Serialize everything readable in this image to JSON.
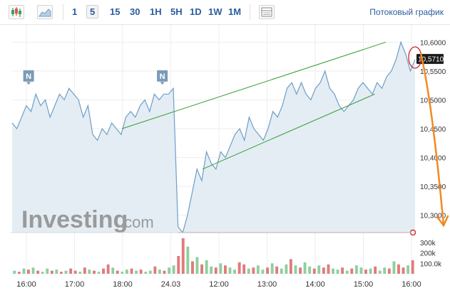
{
  "toolbar": {
    "chart_type_candles_icon": "candlestick-icon",
    "chart_type_area_icon": "area-chart-icon",
    "intervals": [
      "1",
      "5",
      "15",
      "30",
      "1H",
      "5H",
      "1D",
      "1W",
      "1M"
    ],
    "active_interval": "5",
    "table_icon": "table-icon",
    "stream_label": "Потоковый график"
  },
  "watermark": {
    "brand": "Investing",
    "suffix": ".com"
  },
  "colors": {
    "line": "#6d9ec8",
    "area": "#e4edf4",
    "channel": "#2f9e2f",
    "support": "#cc3333",
    "arrow": "#f08a24",
    "vol_up": "#8fcf9f",
    "vol_down": "#e07b7b",
    "news_badge": "#7b9ab7"
  },
  "news_badges": [
    {
      "label": "N",
      "x_hour": 15.95
    },
    {
      "label": "N",
      "x_hour": 19.6
    }
  ],
  "chart_data": {
    "type": "area",
    "x_axis_ticks": [
      "16:00",
      "17:00",
      "18:00",
      "24.03",
      "12:00",
      "13:00",
      "14:00",
      "15:00",
      "16:00"
    ],
    "y_axis_ticks": [
      "10,3000",
      "10,3500",
      "10,4000",
      "10,4500",
      "10,5000",
      "10,5500",
      "10,6000"
    ],
    "ylim": [
      10.27,
      10.63
    ],
    "current_price_label": "10,5710",
    "current_price": 10.571,
    "price_series": [
      10.46,
      10.45,
      10.47,
      10.49,
      10.48,
      10.51,
      10.49,
      10.5,
      10.47,
      10.49,
      10.51,
      10.5,
      10.52,
      10.51,
      10.5,
      10.47,
      10.49,
      10.44,
      10.43,
      10.45,
      10.44,
      10.46,
      10.45,
      10.44,
      10.47,
      10.48,
      10.47,
      10.49,
      10.5,
      10.48,
      10.51,
      10.5,
      10.51,
      10.51,
      10.52,
      10.28,
      10.27,
      10.3,
      10.34,
      10.38,
      10.36,
      10.41,
      10.39,
      10.38,
      10.41,
      10.4,
      10.42,
      10.44,
      10.45,
      10.43,
      10.47,
      10.45,
      10.44,
      10.43,
      10.45,
      10.48,
      10.47,
      10.49,
      10.52,
      10.53,
      10.51,
      10.53,
      10.51,
      10.5,
      10.52,
      10.53,
      10.55,
      10.52,
      10.51,
      10.49,
      10.48,
      10.49,
      10.5,
      10.52,
      10.53,
      10.52,
      10.51,
      10.53,
      10.52,
      10.54,
      10.55,
      10.57,
      10.6,
      10.58,
      10.55,
      10.57
    ],
    "volume_axis_ticks": [
      "300k",
      "200k",
      "100.0k"
    ],
    "volume_max": 340000,
    "volume_series": [
      30000,
      20000,
      50000,
      40000,
      60000,
      30000,
      20000,
      50000,
      30000,
      40000,
      20000,
      30000,
      50000,
      30000,
      20000,
      60000,
      40000,
      30000,
      20000,
      50000,
      90000,
      60000,
      30000,
      20000,
      40000,
      50000,
      30000,
      40000,
      20000,
      30000,
      70000,
      40000,
      30000,
      60000,
      80000,
      170000,
      340000,
      260000,
      120000,
      160000,
      90000,
      130000,
      70000,
      60000,
      100000,
      80000,
      60000,
      40000,
      110000,
      90000,
      50000,
      60000,
      80000,
      40000,
      60000,
      100000,
      70000,
      50000,
      90000,
      140000,
      80000,
      60000,
      110000,
      70000,
      50000,
      80000,
      60000,
      90000,
      50000,
      40000,
      60000,
      30000,
      50000,
      80000,
      60000,
      40000,
      50000,
      70000,
      30000,
      60000,
      50000,
      120000,
      90000,
      60000,
      80000,
      130000
    ],
    "volume_direction": [
      1,
      0,
      1,
      0,
      1,
      0,
      1,
      1,
      0,
      1,
      0,
      1,
      0,
      0,
      1,
      0,
      1,
      0,
      1,
      0,
      0,
      1,
      0,
      1,
      1,
      0,
      1,
      0,
      1,
      1,
      0,
      1,
      0,
      1,
      1,
      0,
      0,
      1,
      0,
      1,
      0,
      1,
      1,
      0,
      1,
      0,
      1,
      1,
      0,
      0,
      1,
      0,
      1,
      1,
      0,
      1,
      0,
      1,
      1,
      0,
      1,
      0,
      1,
      1,
      0,
      1,
      0,
      0,
      1,
      1,
      0,
      1,
      0,
      1,
      1,
      0,
      1,
      0,
      1,
      1,
      0,
      1,
      0,
      0,
      1,
      0
    ],
    "channel_upper": [
      [
        18.5,
        10.45
      ],
      [
        25.7,
        10.6
      ]
    ],
    "channel_lower": [
      [
        20.7,
        10.38
      ],
      [
        25.4,
        10.51
      ]
    ],
    "support_level": 10.27,
    "grid": true
  }
}
